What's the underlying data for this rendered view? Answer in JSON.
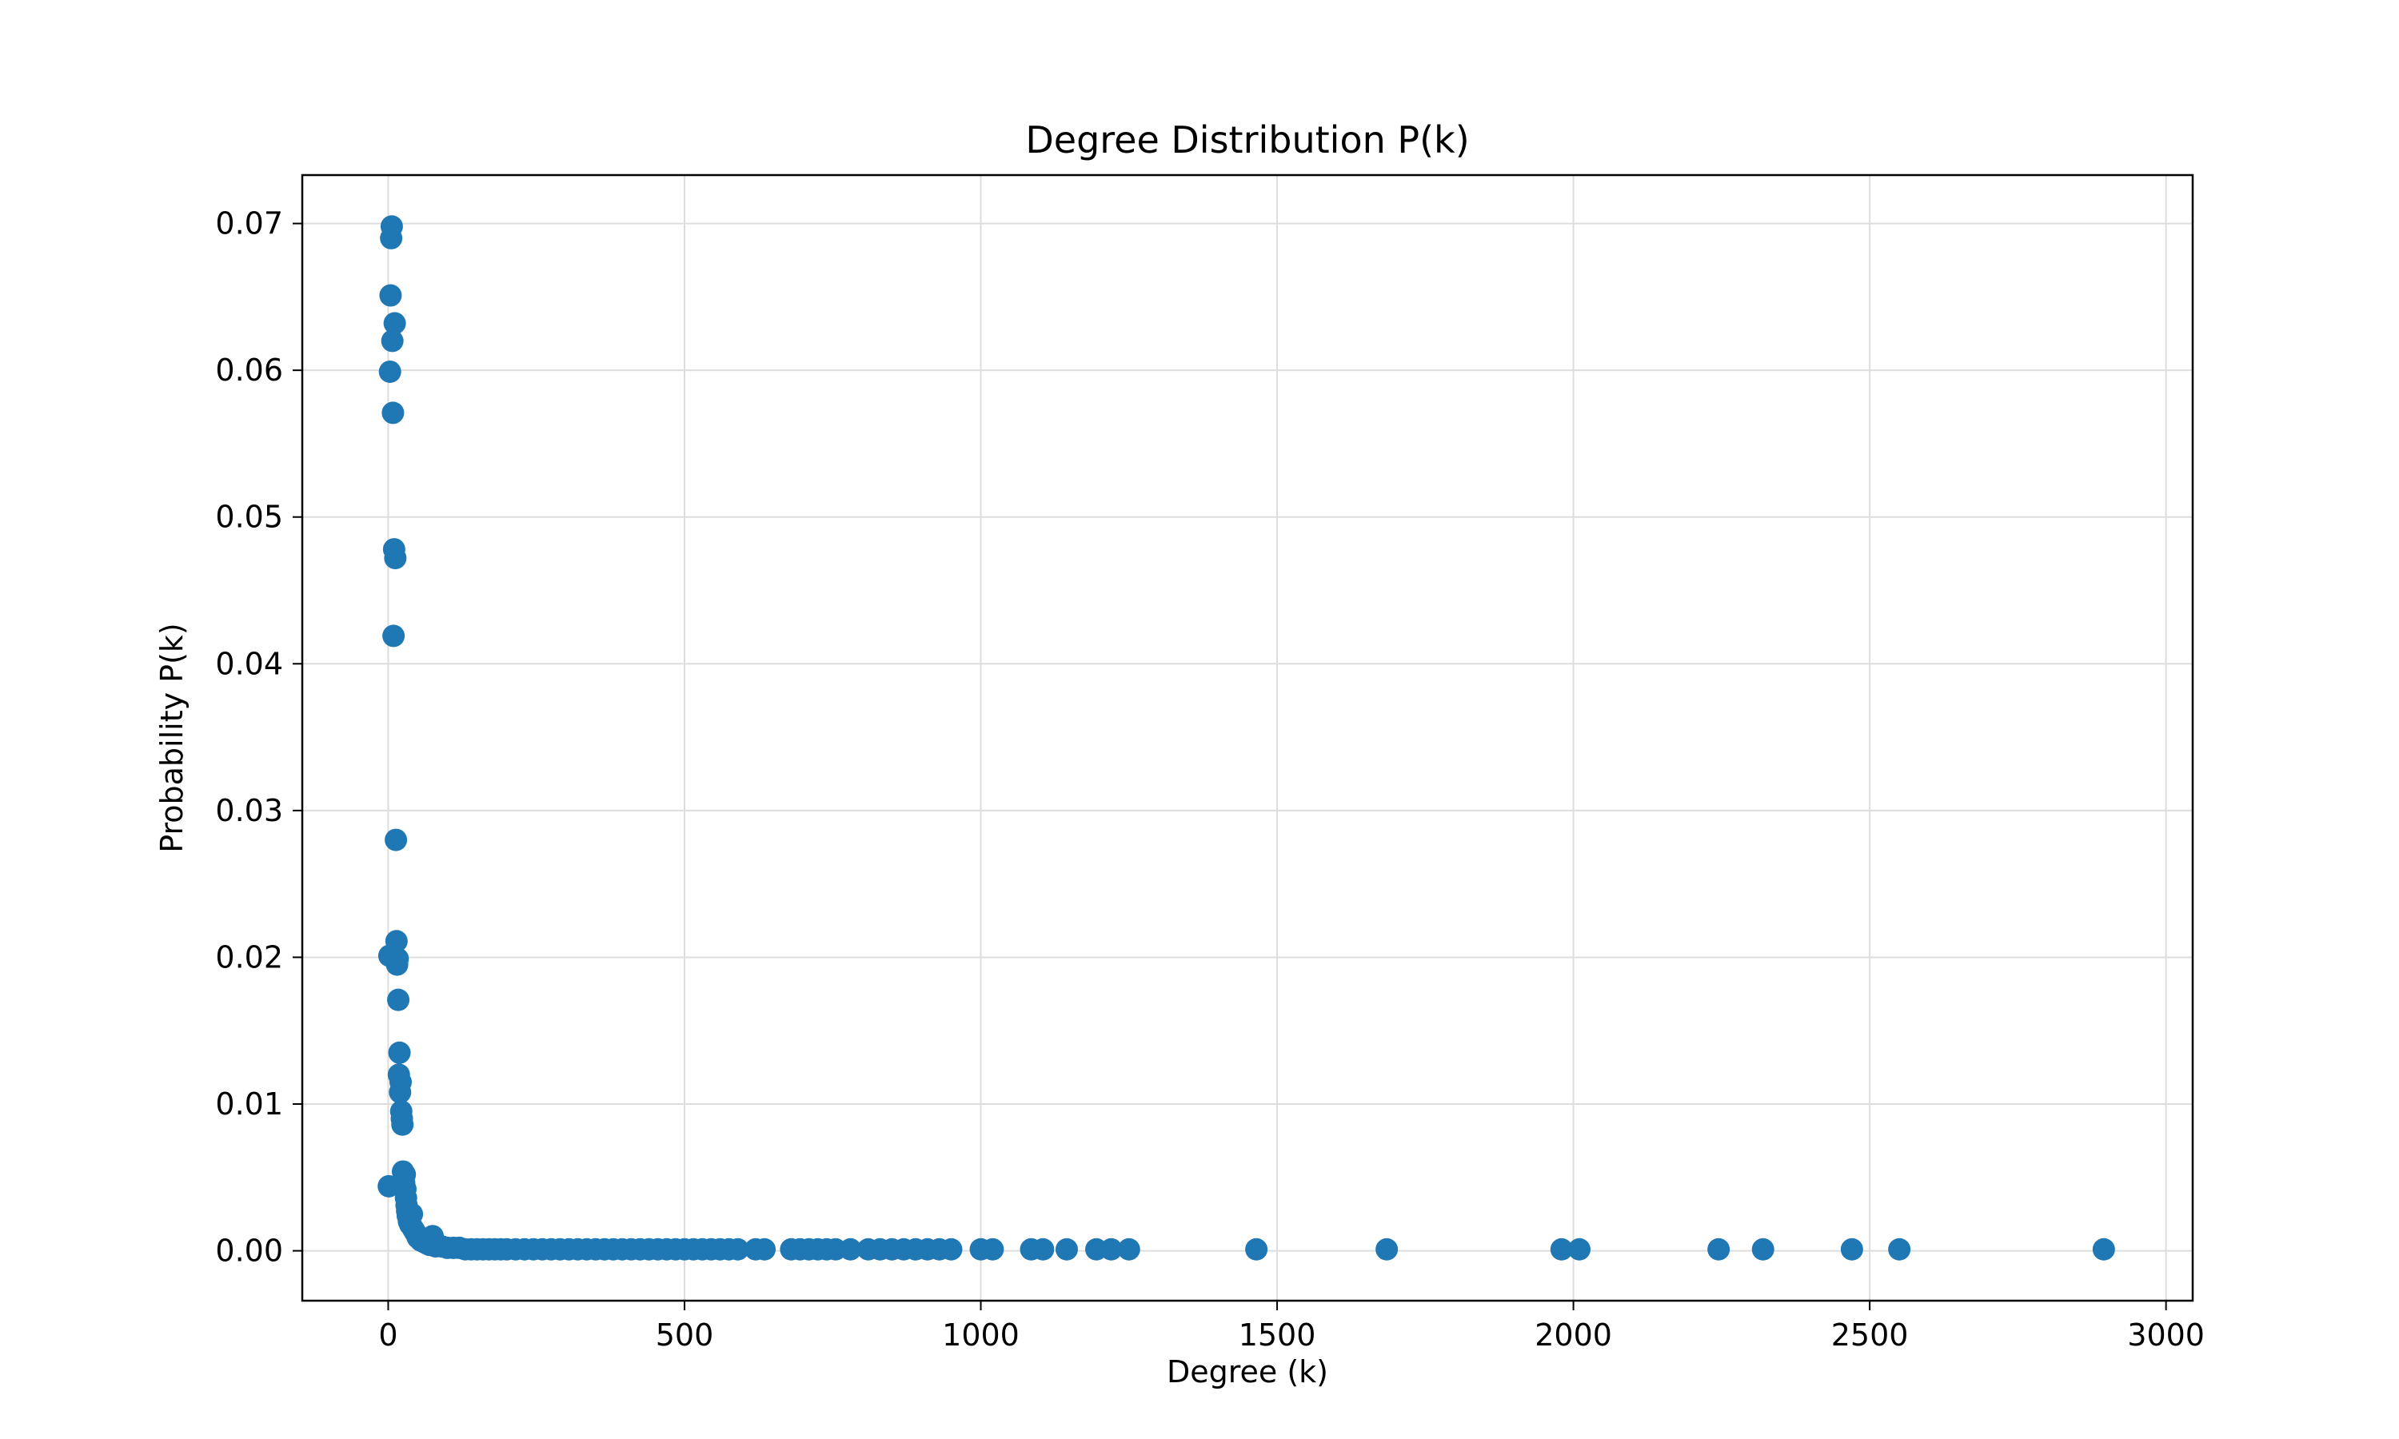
{
  "chart_data": {
    "type": "scatter",
    "title": "Degree Distribution P(k)",
    "xlabel": "Degree (k)",
    "ylabel": "Probability P(k)",
    "xlim": [
      -145,
      3045
    ],
    "ylim": [
      -0.0034,
      0.0733
    ],
    "xticks": [
      0,
      500,
      1000,
      1500,
      2000,
      2500,
      3000
    ],
    "xtick_labels": [
      "0",
      "500",
      "1000",
      "1500",
      "2000",
      "2500",
      "3000"
    ],
    "yticks": [
      0.0,
      0.01,
      0.02,
      0.03,
      0.04,
      0.05,
      0.06,
      0.07
    ],
    "ytick_labels": [
      "0.00",
      "0.01",
      "0.02",
      "0.03",
      "0.04",
      "0.05",
      "0.06",
      "0.07"
    ],
    "grid": true,
    "color": "#1f77b4",
    "series": [
      {
        "points": [
          [
            1,
            0.0044
          ],
          [
            2,
            0.0201
          ],
          [
            3,
            0.0599
          ],
          [
            4,
            0.0651
          ],
          [
            5,
            0.069
          ],
          [
            6,
            0.0698
          ],
          [
            7,
            0.062
          ],
          [
            8,
            0.0571
          ],
          [
            9,
            0.0419
          ],
          [
            10,
            0.0478
          ],
          [
            11,
            0.0632
          ],
          [
            12,
            0.0472
          ],
          [
            13,
            0.028
          ],
          [
            14,
            0.0211
          ],
          [
            15,
            0.0195
          ],
          [
            16,
            0.0199
          ],
          [
            17,
            0.0171
          ],
          [
            18,
            0.012
          ],
          [
            19,
            0.0135
          ],
          [
            20,
            0.0108
          ],
          [
            21,
            0.0115
          ],
          [
            22,
            0.0095
          ],
          [
            23,
            0.009
          ],
          [
            24,
            0.0086
          ],
          [
            25,
            0.0054
          ],
          [
            26,
            0.005
          ],
          [
            27,
            0.0046
          ],
          [
            28,
            0.0052
          ],
          [
            29,
            0.0042
          ],
          [
            30,
            0.0036
          ],
          [
            31,
            0.0031
          ],
          [
            32,
            0.0027
          ],
          [
            33,
            0.0024
          ],
          [
            35,
            0.002
          ],
          [
            37,
            0.0018
          ],
          [
            40,
            0.0025
          ],
          [
            42,
            0.0015
          ],
          [
            45,
            0.0013
          ],
          [
            48,
            0.0011
          ],
          [
            50,
            0.0009
          ],
          [
            55,
            0.0007
          ],
          [
            60,
            0.0006
          ],
          [
            65,
            0.0005
          ],
          [
            70,
            0.0004
          ],
          [
            75,
            0.001
          ],
          [
            80,
            0.0003
          ],
          [
            90,
            0.0003
          ],
          [
            100,
            0.0002
          ],
          [
            110,
            0.0002
          ],
          [
            120,
            0.0002
          ],
          [
            130,
            0.0001
          ],
          [
            140,
            0.0001
          ],
          [
            150,
            0.0001
          ],
          [
            160,
            0.0001
          ],
          [
            170,
            0.0001
          ],
          [
            180,
            0.0001
          ],
          [
            190,
            0.0001
          ],
          [
            200,
            0.0001
          ],
          [
            215,
            0.0001
          ],
          [
            230,
            0.0001
          ],
          [
            245,
            0.0001
          ],
          [
            260,
            0.0001
          ],
          [
            275,
            0.0001
          ],
          [
            290,
            0.0001
          ],
          [
            305,
            0.0001
          ],
          [
            320,
            0.0001
          ],
          [
            335,
            0.0001
          ],
          [
            350,
            0.0001
          ],
          [
            365,
            0.0001
          ],
          [
            380,
            0.0001
          ],
          [
            395,
            0.0001
          ],
          [
            410,
            0.0001
          ],
          [
            425,
            0.0001
          ],
          [
            440,
            0.0001
          ],
          [
            455,
            0.0001
          ],
          [
            470,
            0.0001
          ],
          [
            485,
            0.0001
          ],
          [
            500,
            0.0001
          ],
          [
            515,
            0.0001
          ],
          [
            530,
            0.0001
          ],
          [
            545,
            0.0001
          ],
          [
            560,
            0.0001
          ],
          [
            575,
            0.0001
          ],
          [
            590,
            0.0001
          ],
          [
            620,
            0.0001
          ],
          [
            635,
            0.0001
          ],
          [
            680,
            0.0001
          ],
          [
            695,
            0.0001
          ],
          [
            710,
            0.0001
          ],
          [
            725,
            0.0001
          ],
          [
            740,
            0.0001
          ],
          [
            755,
            0.0001
          ],
          [
            780,
            0.0001
          ],
          [
            810,
            0.0001
          ],
          [
            830,
            0.0001
          ],
          [
            850,
            0.0001
          ],
          [
            870,
            0.0001
          ],
          [
            890,
            0.0001
          ],
          [
            910,
            0.0001
          ],
          [
            930,
            0.0001
          ],
          [
            950,
            0.0001
          ],
          [
            1000,
            0.0001
          ],
          [
            1020,
            0.0001
          ],
          [
            1085,
            0.0001
          ],
          [
            1105,
            0.0001
          ],
          [
            1145,
            0.0001
          ],
          [
            1195,
            0.0001
          ],
          [
            1220,
            0.0001
          ],
          [
            1250,
            0.0001
          ],
          [
            1465,
            0.0001
          ],
          [
            1685,
            0.0001
          ],
          [
            1980,
            0.0001
          ],
          [
            2010,
            0.0001
          ],
          [
            2245,
            0.0001
          ],
          [
            2320,
            0.0001
          ],
          [
            2470,
            0.0001
          ],
          [
            2550,
            0.0001
          ],
          [
            2895,
            0.0001
          ]
        ]
      }
    ]
  }
}
